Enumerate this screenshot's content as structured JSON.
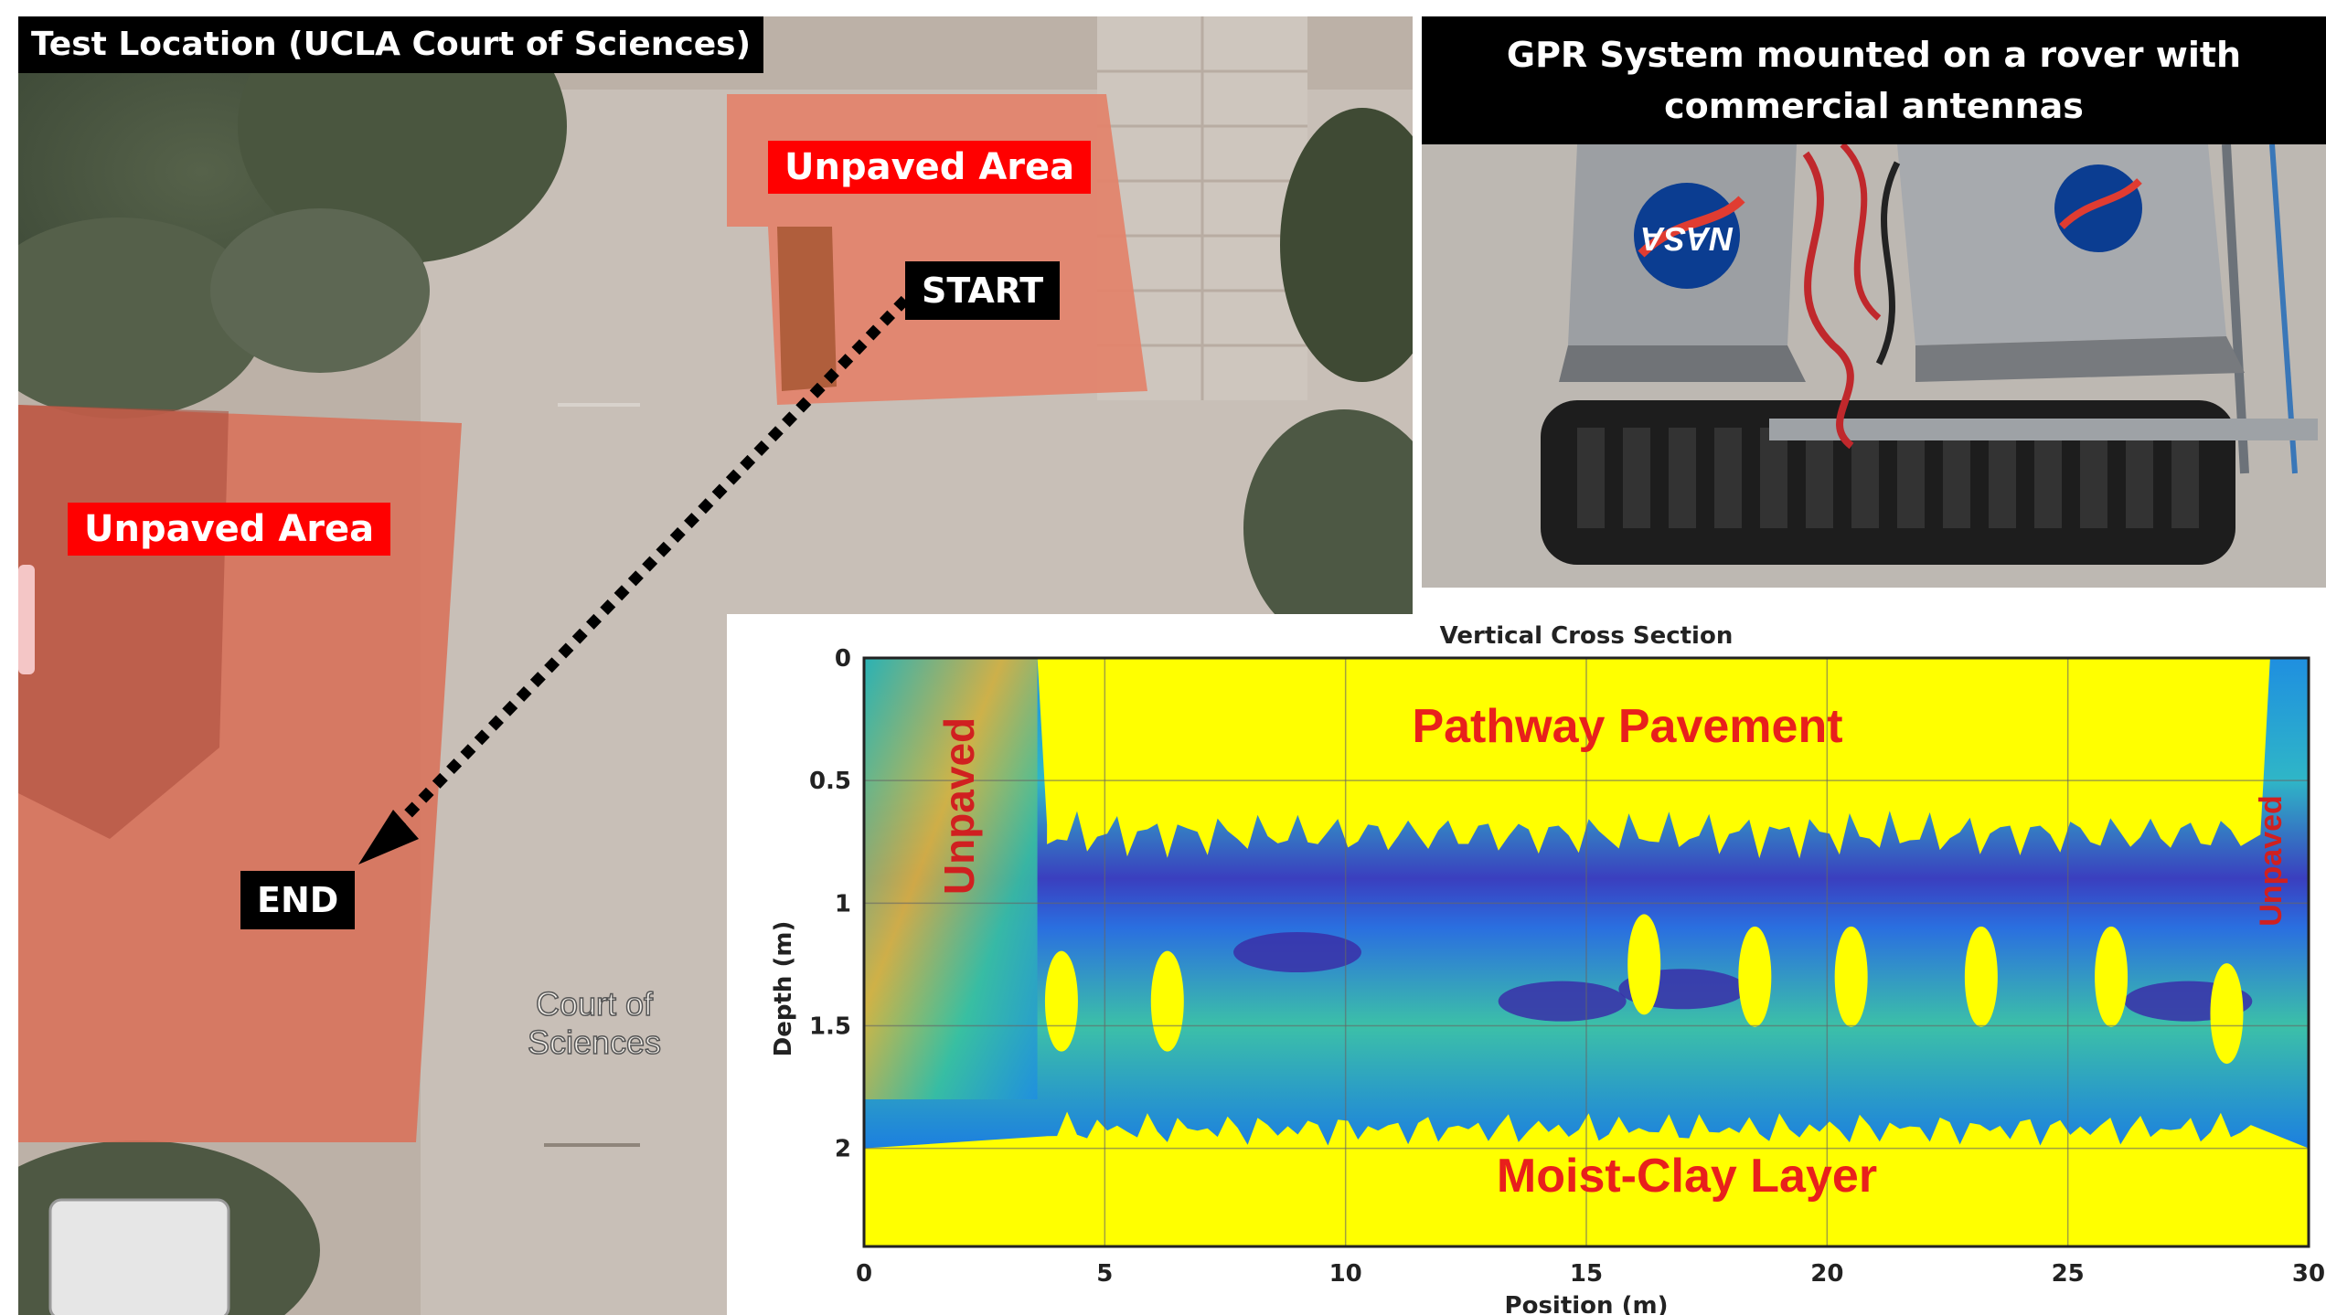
{
  "map": {
    "title": "Test Location (UCLA Court of Sciences)",
    "unpaved_top_label": "Unpaved Area",
    "unpaved_left_label": "Unpaved Area",
    "start_label": "START",
    "end_label": "END",
    "court_label_line1": "Court of",
    "court_label_line2": "Sciences"
  },
  "rover": {
    "title_line1": "GPR System mounted on a rover with",
    "title_line2": "commercial antennas",
    "logo_text": "NASA"
  },
  "chart_data": {
    "type": "heatmap",
    "title": "Vertical Cross Section",
    "xlabel": "Position (m)",
    "ylabel": "Depth (m)",
    "xlim": [
      0,
      30
    ],
    "ylim": [
      2.4,
      0
    ],
    "xticks": [
      "0",
      "5",
      "10",
      "15",
      "20",
      "25",
      "30"
    ],
    "yticks": [
      "0",
      "0.5",
      "1",
      "1.5",
      "2"
    ],
    "grid": true,
    "annotations": {
      "pavement": "Pathway Pavement",
      "clay": "Moist-Clay Layer",
      "unpaved_left": "Unpaved",
      "unpaved_right": "Unpaved"
    },
    "colors": {
      "high": "#ffff00",
      "mid": "#1fb5c4",
      "low": "#3a2fa8"
    }
  }
}
